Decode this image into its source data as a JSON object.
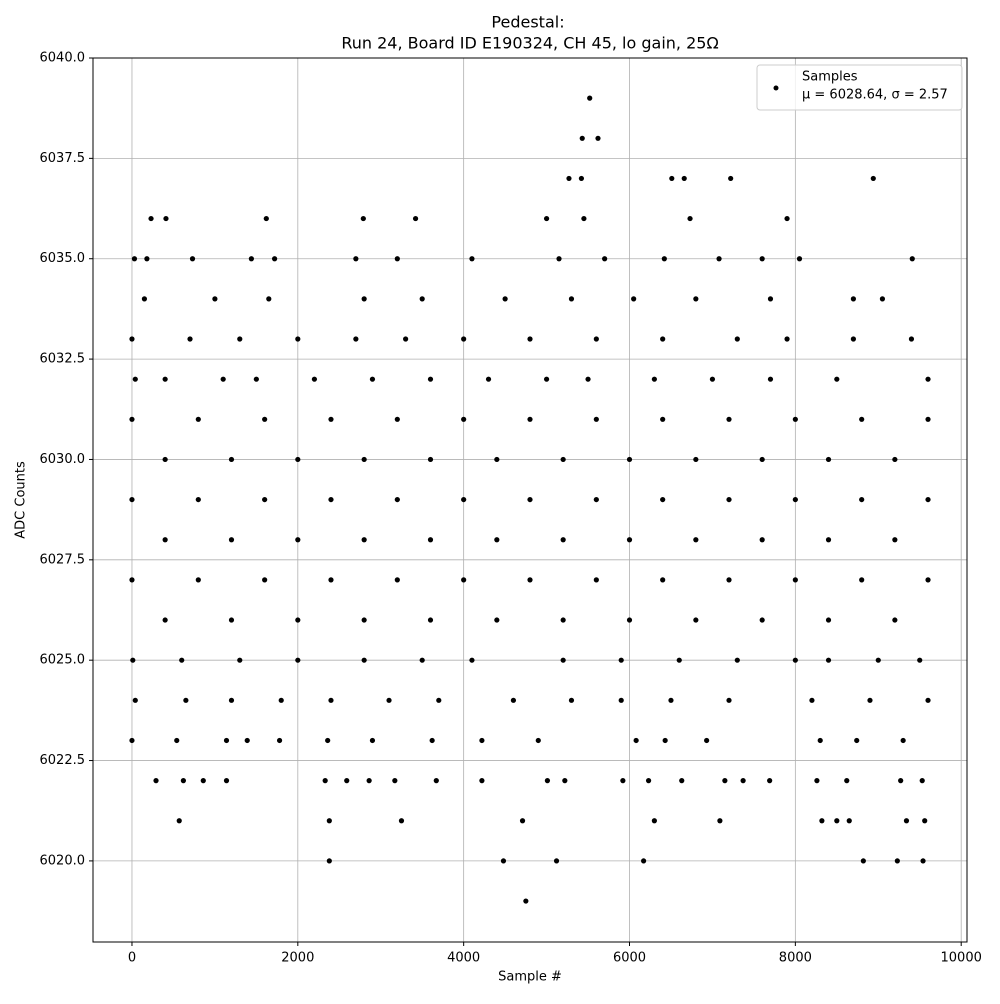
{
  "chart_data": {
    "type": "scatter",
    "title": "Pedestal:",
    "subtitle": "Run 24, Board ID E190324, CH 45, lo gain, 25Ω",
    "x_label": "Sample #",
    "y_label": "ADC Counts",
    "legend_note": "μ = 6028.64, σ = 2.57",
    "legend": "upper right",
    "grid": true,
    "xlim": [
      -470,
      10070
    ],
    "ylim": [
      6017.98,
      6040
    ],
    "xticks": [
      0,
      2000,
      4000,
      6000,
      8000,
      10000
    ],
    "yticks": [
      {
        "value": 6020,
        "label": "6020.0"
      },
      {
        "value": 6022.5,
        "label": "6022.5"
      },
      {
        "value": 6025,
        "label": "6025.0"
      },
      {
        "value": 6027.5,
        "label": "6027.5"
      },
      {
        "value": 6030,
        "label": "6030.0"
      },
      {
        "value": 6032.5,
        "label": "6032.5"
      },
      {
        "value": 6035,
        "label": "6035.0"
      },
      {
        "value": 6037.5,
        "label": "6037.5"
      },
      {
        "value": 6040,
        "label": "6040.0"
      }
    ],
    "x": [
      0,
      800,
      1600,
      2400,
      3200,
      4000,
      4800,
      5600,
      6400,
      7200,
      8000,
      8800,
      9600,
      400,
      1200,
      2000,
      2800,
      3600,
      4400,
      5200,
      6000,
      6800,
      7600,
      8400,
      9200,
      0,
      800,
      1600,
      2400,
      3200,
      4000,
      4800,
      5600,
      6400,
      7200,
      8000,
      8800,
      9600,
      400,
      1200,
      2000,
      2800,
      3600,
      4400,
      5200,
      6000,
      6800,
      7600,
      8400,
      9200,
      0,
      800,
      1600,
      2400,
      3200,
      4000,
      4800,
      5600,
      6400,
      7200,
      8000,
      8800,
      9600,
      400,
      1200,
      2000,
      2800,
      3600,
      4400,
      5200,
      6000,
      6800,
      7600,
      8400,
      9200,
      40,
      400,
      1100,
      1500,
      2200,
      2900,
      3600,
      4300,
      5000,
      5500,
      6300,
      7000,
      7700,
      8500,
      9600,
      0,
      700,
      1300,
      2000,
      2700,
      3300,
      4000,
      4800,
      5600,
      6400,
      7300,
      7900,
      8700,
      9400,
      150,
      1000,
      1650,
      2800,
      3500,
      4500,
      5300,
      6050,
      6800,
      7700,
      8700,
      9050,
      30,
      180,
      730,
      1440,
      1720,
      2700,
      3200,
      4100,
      5150,
      5700,
      6420,
      7080,
      7600,
      8050,
      9410,
      230,
      410,
      1620,
      2790,
      3420,
      5000,
      5450,
      6730,
      7900,
      5270,
      5420,
      6510,
      6660,
      7220,
      8940,
      5430,
      5620,
      5520,
      10,
      600,
      1300,
      2000,
      2800,
      3500,
      4100,
      5200,
      5900,
      6600,
      7300,
      8000,
      8400,
      9000,
      9500,
      40,
      650,
      1200,
      1800,
      2400,
      3100,
      3700,
      4600,
      5300,
      5900,
      6500,
      7200,
      8200,
      8900,
      9600,
      0,
      540,
      1140,
      1390,
      1780,
      2360,
      2900,
      3620,
      4220,
      4900,
      6080,
      6430,
      6930,
      8300,
      8740,
      9300,
      290,
      620,
      860,
      1140,
      2330,
      2590,
      2860,
      3170,
      3670,
      4220,
      5010,
      5220,
      5920,
      6230,
      6630,
      7150,
      7370,
      7690,
      8260,
      8620,
      9270,
      9530,
      570,
      2380,
      3250,
      4710,
      6300,
      7090,
      8320,
      8500,
      8650,
      9340,
      9560,
      2380,
      4480,
      5120,
      6170,
      8820,
      9230,
      9540,
      4750
    ],
    "series": [
      {
        "name": "Samples",
        "color": "#000000",
        "values": [
          6031,
          6031,
          6031,
          6031,
          6031,
          6031,
          6031,
          6031,
          6031,
          6031,
          6031,
          6031,
          6031,
          6030,
          6030,
          6030,
          6030,
          6030,
          6030,
          6030,
          6030,
          6030,
          6030,
          6030,
          6030,
          6029,
          6029,
          6029,
          6029,
          6029,
          6029,
          6029,
          6029,
          6029,
          6029,
          6029,
          6029,
          6029,
          6028,
          6028,
          6028,
          6028,
          6028,
          6028,
          6028,
          6028,
          6028,
          6028,
          6028,
          6028,
          6027,
          6027,
          6027,
          6027,
          6027,
          6027,
          6027,
          6027,
          6027,
          6027,
          6027,
          6027,
          6027,
          6026,
          6026,
          6026,
          6026,
          6026,
          6026,
          6026,
          6026,
          6026,
          6026,
          6026,
          6026,
          6032,
          6032,
          6032,
          6032,
          6032,
          6032,
          6032,
          6032,
          6032,
          6032,
          6032,
          6032,
          6032,
          6032,
          6032,
          6033,
          6033,
          6033,
          6033,
          6033,
          6033,
          6033,
          6033,
          6033,
          6033,
          6033,
          6033,
          6033,
          6033,
          6034,
          6034,
          6034,
          6034,
          6034,
          6034,
          6034,
          6034,
          6034,
          6034,
          6034,
          6034,
          6035,
          6035,
          6035,
          6035,
          6035,
          6035,
          6035,
          6035,
          6035,
          6035,
          6035,
          6035,
          6035,
          6035,
          6035,
          6036,
          6036,
          6036,
          6036,
          6036,
          6036,
          6036,
          6036,
          6036,
          6037,
          6037,
          6037,
          6037,
          6037,
          6037,
          6038,
          6038,
          6039,
          6025,
          6025,
          6025,
          6025,
          6025,
          6025,
          6025,
          6025,
          6025,
          6025,
          6025,
          6025,
          6025,
          6025,
          6025,
          6024,
          6024,
          6024,
          6024,
          6024,
          6024,
          6024,
          6024,
          6024,
          6024,
          6024,
          6024,
          6024,
          6024,
          6024,
          6023,
          6023,
          6023,
          6023,
          6023,
          6023,
          6023,
          6023,
          6023,
          6023,
          6023,
          6023,
          6023,
          6023,
          6023,
          6023,
          6022,
          6022,
          6022,
          6022,
          6022,
          6022,
          6022,
          6022,
          6022,
          6022,
          6022,
          6022,
          6022,
          6022,
          6022,
          6022,
          6022,
          6022,
          6022,
          6022,
          6022,
          6022,
          6021,
          6021,
          6021,
          6021,
          6021,
          6021,
          6021,
          6021,
          6021,
          6021,
          6021,
          6020,
          6020,
          6020,
          6020,
          6020,
          6020,
          6020,
          6019
        ]
      }
    ]
  }
}
